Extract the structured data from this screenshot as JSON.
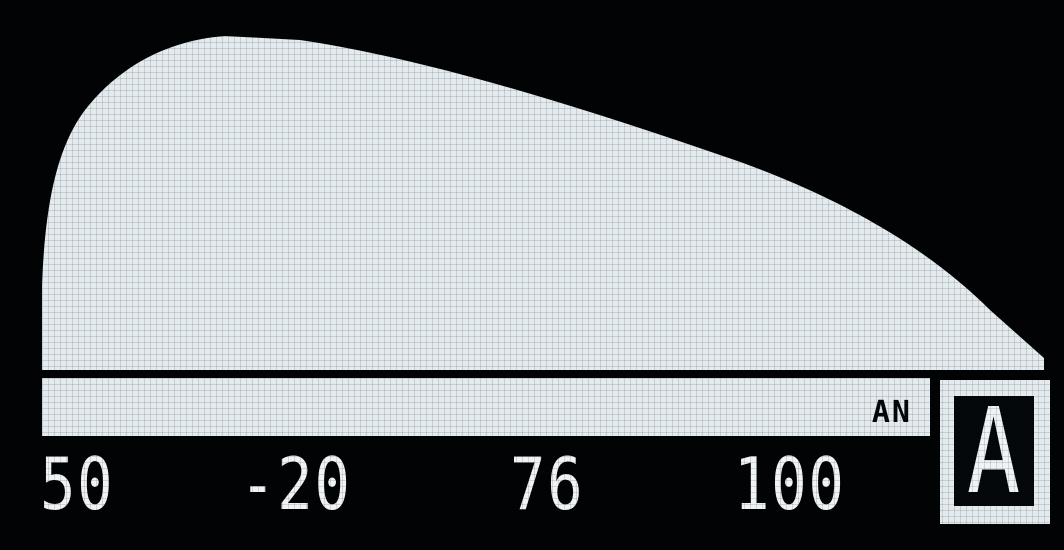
{
  "display": {
    "background_color": "#020304",
    "fill_color": "#e3ebef",
    "text_color": "#eef3f6"
  },
  "envelope_graph": {
    "shape": "attack-decay curve",
    "fill": "#e3ebef"
  },
  "status_strip": {
    "mode_tag": "AN"
  },
  "values": [
    "50",
    "-20",
    "76",
    "100"
  ],
  "mode_badge": {
    "letter": "A"
  }
}
